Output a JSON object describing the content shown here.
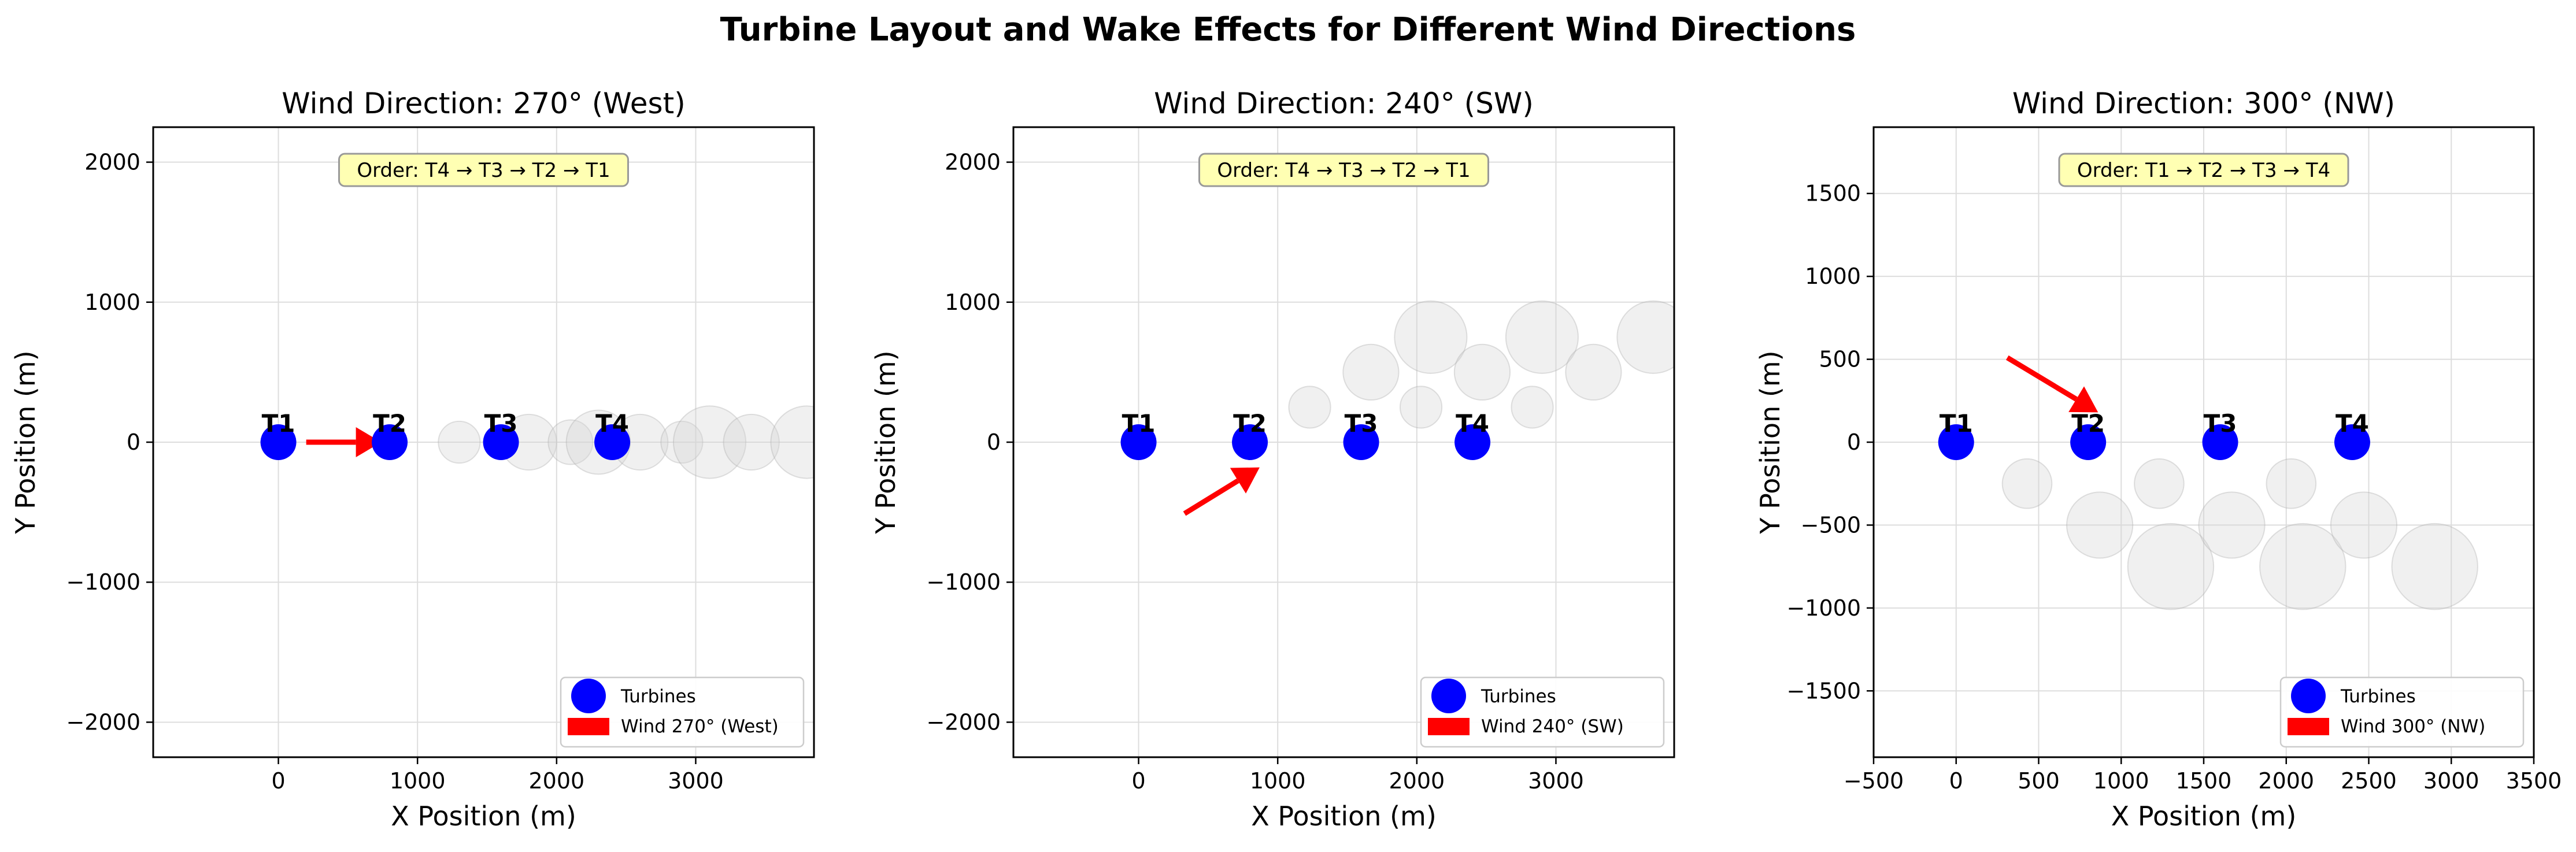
{
  "figure": {
    "suptitle": "Turbine Layout and Wake Effects for Different Wind Directions"
  },
  "chart_data": [
    {
      "type": "scatter",
      "title": "Wind Direction: 270° (West)",
      "xlabel": "X Position (m)",
      "ylabel": "Y Position (m)",
      "xlim": [
        -900,
        3850
      ],
      "ylim": [
        -2250,
        2250
      ],
      "xticks": [
        0,
        1000,
        2000,
        3000
      ],
      "yticks": [
        -2000,
        -1000,
        0,
        1000,
        2000
      ],
      "grid": true,
      "legend_position": "lower right",
      "annotation": "Order: T4 → T3 → T2 → T1",
      "turbines": [
        {
          "label": "T1",
          "x": 0,
          "y": 0
        },
        {
          "label": "T2",
          "x": 800,
          "y": 0
        },
        {
          "label": "T3",
          "x": 1600,
          "y": 0
        },
        {
          "label": "T4",
          "x": 2400,
          "y": 0
        }
      ],
      "wind_arrow": {
        "x1": 200,
        "y1": 0,
        "x2": 740,
        "y2": 0
      },
      "wakes": [
        {
          "x": 1300,
          "y": 0,
          "r": 150
        },
        {
          "x": 1800,
          "y": 0,
          "r": 200
        },
        {
          "x": 2100,
          "y": 0,
          "r": 160
        },
        {
          "x": 2300,
          "y": 0,
          "r": 230
        },
        {
          "x": 2600,
          "y": 0,
          "r": 200
        },
        {
          "x": 2900,
          "y": 0,
          "r": 150
        },
        {
          "x": 3100,
          "y": 0,
          "r": 260
        },
        {
          "x": 3400,
          "y": 0,
          "r": 200
        },
        {
          "x": 3800,
          "y": 0,
          "r": 260
        }
      ],
      "legend": [
        {
          "label": "Turbines",
          "kind": "marker"
        },
        {
          "label": "Wind 270° (West)",
          "kind": "patch"
        }
      ]
    },
    {
      "type": "scatter",
      "title": "Wind Direction: 240° (SW)",
      "xlabel": "X Position (m)",
      "ylabel": "Y Position (m)",
      "xlim": [
        -900,
        3850
      ],
      "ylim": [
        -2250,
        2250
      ],
      "xticks": [
        0,
        1000,
        2000,
        3000
      ],
      "yticks": [
        -2000,
        -1000,
        0,
        1000,
        2000
      ],
      "grid": true,
      "legend_position": "lower right",
      "annotation": "Order: T4 → T3 → T2 → T1",
      "turbines": [
        {
          "label": "T1",
          "x": 0,
          "y": 0
        },
        {
          "label": "T2",
          "x": 800,
          "y": 0
        },
        {
          "label": "T3",
          "x": 1600,
          "y": 0
        },
        {
          "label": "T4",
          "x": 2400,
          "y": 0
        }
      ],
      "wind_arrow": {
        "x1": 330,
        "y1": -510,
        "x2": 870,
        "y2": -180
      },
      "wakes": [
        {
          "x": 1230,
          "y": 250,
          "r": 150
        },
        {
          "x": 1670,
          "y": 500,
          "r": 200
        },
        {
          "x": 2030,
          "y": 250,
          "r": 150
        },
        {
          "x": 2100,
          "y": 750,
          "r": 260
        },
        {
          "x": 2470,
          "y": 500,
          "r": 200
        },
        {
          "x": 2830,
          "y": 250,
          "r": 150
        },
        {
          "x": 2900,
          "y": 750,
          "r": 260
        },
        {
          "x": 3270,
          "y": 500,
          "r": 200
        },
        {
          "x": 3700,
          "y": 750,
          "r": 260
        }
      ],
      "legend": [
        {
          "label": "Turbines",
          "kind": "marker"
        },
        {
          "label": "Wind 240° (SW)",
          "kind": "patch"
        }
      ]
    },
    {
      "type": "scatter",
      "title": "Wind Direction: 300° (NW)",
      "xlabel": "X Position (m)",
      "ylabel": "Y Position (m)",
      "xlim": [
        -500,
        3500
      ],
      "ylim": [
        -1900,
        1900
      ],
      "xticks": [
        -500,
        0,
        500,
        1000,
        1500,
        2000,
        2500,
        3000,
        3500
      ],
      "yticks": [
        -1500,
        -1000,
        -500,
        0,
        500,
        1000,
        1500
      ],
      "grid": true,
      "legend_position": "lower right",
      "annotation": "Order: T1 → T2 → T3 → T4",
      "turbines": [
        {
          "label": "T1",
          "x": 0,
          "y": 0
        },
        {
          "label": "T2",
          "x": 800,
          "y": 0
        },
        {
          "label": "T3",
          "x": 1600,
          "y": 0
        },
        {
          "label": "T4",
          "x": 2400,
          "y": 0
        }
      ],
      "wind_arrow": {
        "x1": 310,
        "y1": 510,
        "x2": 860,
        "y2": 180
      },
      "wakes": [
        {
          "x": 430,
          "y": -250,
          "r": 150
        },
        {
          "x": 870,
          "y": -500,
          "r": 200
        },
        {
          "x": 1230,
          "y": -250,
          "r": 150
        },
        {
          "x": 1300,
          "y": -750,
          "r": 260
        },
        {
          "x": 1670,
          "y": -500,
          "r": 200
        },
        {
          "x": 2030,
          "y": -250,
          "r": 150
        },
        {
          "x": 2100,
          "y": -750,
          "r": 260
        },
        {
          "x": 2470,
          "y": -500,
          "r": 200
        },
        {
          "x": 2900,
          "y": -750,
          "r": 260
        }
      ],
      "legend": [
        {
          "label": "Turbines",
          "kind": "marker"
        },
        {
          "label": "Wind 300° (NW)",
          "kind": "patch"
        }
      ]
    }
  ],
  "colors": {
    "turbine": "#0000ff",
    "arrow": "#ff0000",
    "wake_fill": "#d3d3d3",
    "wake_stroke": "#a9a9a9",
    "annotation_fill": "#ffffb3",
    "annotation_stroke": "#999999",
    "grid": "#dddddd",
    "axis": "#000000"
  }
}
